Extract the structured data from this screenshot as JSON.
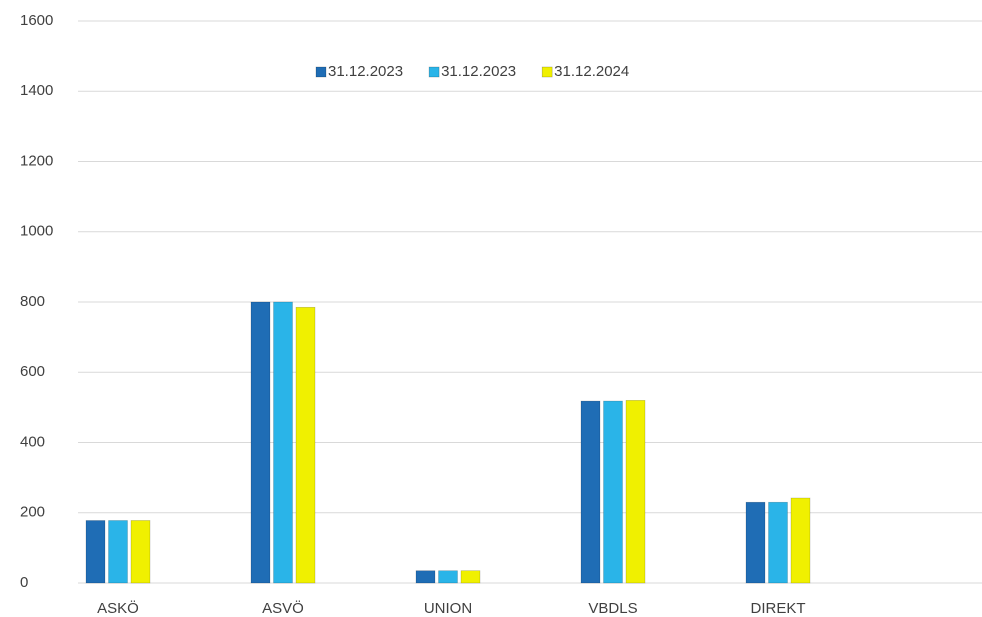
{
  "chart_data": {
    "type": "bar",
    "categories": [
      "ASKÖ",
      "ASVÖ",
      "UNION",
      "VBDLS",
      "DIREKT"
    ],
    "series": [
      {
        "name": "31.12.2023",
        "color": "#1f6db5",
        "values": [
          178,
          800,
          35,
          518,
          230
        ]
      },
      {
        "name": "31.12.2023",
        "color": "#2ab4e8",
        "values": [
          178,
          800,
          35,
          518,
          230
        ]
      },
      {
        "name": "31.12.2024",
        "color": "#f0f000",
        "values": [
          178,
          785,
          35,
          520,
          242
        ]
      }
    ],
    "ylim": [
      0,
      1600
    ],
    "yticks": [
      0,
      200,
      400,
      600,
      800,
      1000,
      1200,
      1400,
      1600
    ],
    "grid": true,
    "legend": "top"
  }
}
